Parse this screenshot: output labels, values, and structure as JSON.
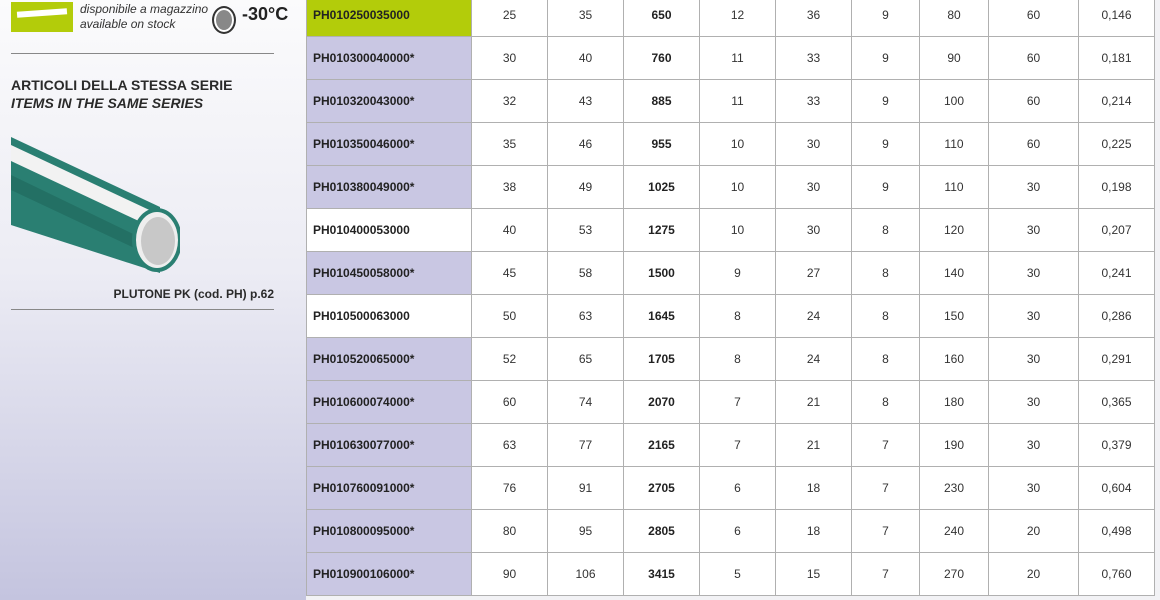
{
  "sidebar": {
    "stock_it": "disponibile a magazzino",
    "stock_en": "available on stock",
    "temperature": "-30°C",
    "series_title_it": "ARTICOLI DELLA STESSA SERIE",
    "series_title_en": "ITEMS IN THE SAME SERIES",
    "related_item": "PLUTONE PK (cod. PH) p.62",
    "colors": {
      "stock_badge": "#b3cc0a",
      "pipe": "#2a7f72",
      "row_highlight": "#c9c7e3"
    }
  },
  "table": {
    "rows": [
      {
        "code": "PH010250035000",
        "style": "hl",
        "values": [
          "25",
          "35",
          "650",
          "12",
          "36",
          "9",
          "80",
          "60",
          "0,146"
        ]
      },
      {
        "code": "PH010300040000*",
        "style": "star",
        "values": [
          "30",
          "40",
          "760",
          "11",
          "33",
          "9",
          "90",
          "60",
          "0,181"
        ]
      },
      {
        "code": "PH010320043000*",
        "style": "star",
        "values": [
          "32",
          "43",
          "885",
          "11",
          "33",
          "9",
          "100",
          "60",
          "0,214"
        ]
      },
      {
        "code": "PH010350046000*",
        "style": "star",
        "values": [
          "35",
          "46",
          "955",
          "10",
          "30",
          "9",
          "110",
          "60",
          "0,225"
        ]
      },
      {
        "code": "PH010380049000*",
        "style": "star",
        "values": [
          "38",
          "49",
          "1025",
          "10",
          "30",
          "9",
          "110",
          "30",
          "0,198"
        ]
      },
      {
        "code": "PH010400053000",
        "style": "plain",
        "values": [
          "40",
          "53",
          "1275",
          "10",
          "30",
          "8",
          "120",
          "30",
          "0,207"
        ]
      },
      {
        "code": "PH010450058000*",
        "style": "star",
        "values": [
          "45",
          "58",
          "1500",
          "9",
          "27",
          "8",
          "140",
          "30",
          "0,241"
        ]
      },
      {
        "code": "PH010500063000",
        "style": "plain",
        "values": [
          "50",
          "63",
          "1645",
          "8",
          "24",
          "8",
          "150",
          "30",
          "0,286"
        ]
      },
      {
        "code": "PH010520065000*",
        "style": "star",
        "values": [
          "52",
          "65",
          "1705",
          "8",
          "24",
          "8",
          "160",
          "30",
          "0,291"
        ]
      },
      {
        "code": "PH010600074000*",
        "style": "star",
        "values": [
          "60",
          "74",
          "2070",
          "7",
          "21",
          "8",
          "180",
          "30",
          "0,365"
        ]
      },
      {
        "code": "PH010630077000*",
        "style": "star",
        "values": [
          "63",
          "77",
          "2165",
          "7",
          "21",
          "7",
          "190",
          "30",
          "0,379"
        ]
      },
      {
        "code": "PH010760091000*",
        "style": "star",
        "values": [
          "76",
          "91",
          "2705",
          "6",
          "18",
          "7",
          "230",
          "30",
          "0,604"
        ]
      },
      {
        "code": "PH010800095000*",
        "style": "star",
        "values": [
          "80",
          "95",
          "2805",
          "6",
          "18",
          "7",
          "240",
          "20",
          "0,498"
        ]
      },
      {
        "code": "PH010900106000*",
        "style": "star",
        "values": [
          "90",
          "106",
          "3415",
          "5",
          "15",
          "7",
          "270",
          "20",
          "0,760"
        ]
      }
    ]
  }
}
